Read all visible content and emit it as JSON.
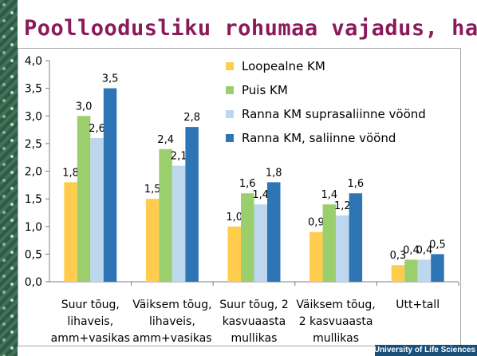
{
  "title": "Poolloodusliku rohumaa vajadus, ha",
  "colors": {
    "title": "#8b1a5a",
    "left_strip": "#2e5a45",
    "axis": "#7f7f7f",
    "text": "#000000"
  },
  "chart_data": {
    "type": "bar",
    "title": "",
    "xlabel": "",
    "ylabel": "",
    "ylim": [
      0,
      4
    ],
    "yticks": [
      "0,0",
      "0,5",
      "1,0",
      "1,5",
      "2,0",
      "2,5",
      "3,0",
      "3,5",
      "4,0"
    ],
    "grid": false,
    "legend_position": "top-right",
    "categories": [
      [
        "Suur tõug,",
        "lihaveis,",
        "amm+vasikas"
      ],
      [
        "Väiksem tõug,",
        "lihaveis,",
        "amm+vasikas"
      ],
      [
        "Suur tõug, 2",
        "kasvuaasta",
        "mullikas"
      ],
      [
        "Väiksem tõug,",
        "2 kasvuaasta",
        "mullikas"
      ],
      [
        "Utt+tall"
      ]
    ],
    "series": [
      {
        "name": "Loopealne KM",
        "color": "#ffcc4d",
        "values": [
          1.8,
          1.5,
          1.0,
          0.9,
          0.3
        ],
        "labels": [
          "1,8",
          "1,5",
          "1,0",
          "0,9",
          "0,3"
        ]
      },
      {
        "name": "Puis KM",
        "color": "#9bcf6e",
        "values": [
          3.0,
          2.4,
          1.6,
          1.4,
          0.4
        ],
        "labels": [
          "3,0",
          "2,4",
          "1,6",
          "1,4",
          "0,4"
        ]
      },
      {
        "name": "Ranna KM suprasaliinne vöönd",
        "color": "#bdd7ee",
        "values": [
          2.6,
          2.1,
          1.4,
          1.2,
          0.4
        ],
        "labels": [
          "2,6",
          "2,1",
          "1,4",
          "1,2",
          "0,4"
        ]
      },
      {
        "name": "Ranna KM, saliinne vöönd",
        "color": "#2e75b6",
        "values": [
          3.5,
          2.8,
          1.8,
          1.6,
          0.5
        ],
        "labels": [
          "3,5",
          "2,8",
          "1,8",
          "1,6",
          "0,5"
        ]
      }
    ]
  }
}
